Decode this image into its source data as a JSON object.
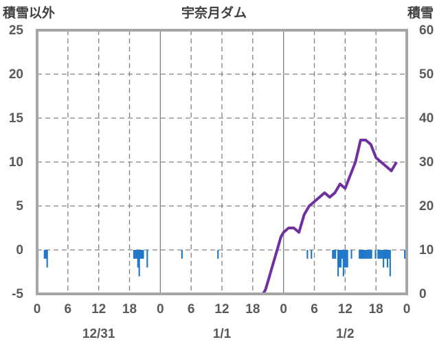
{
  "chart_data": {
    "type": "bar+line",
    "title": "宇奈月ダム",
    "left_axis_title": "積雪以外",
    "right_axis_title": "積雪",
    "left_ylim": [
      -5,
      25
    ],
    "right_ylim": [
      0,
      60
    ],
    "left_ticks": [
      "25",
      "20",
      "15",
      "10",
      "5",
      "0",
      "-5"
    ],
    "right_ticks": [
      "60",
      "50",
      "40",
      "30",
      "20",
      "10",
      "0"
    ],
    "x_tick_labels": [
      "0",
      "6",
      "12",
      "18",
      "0",
      "6",
      "12",
      "18",
      "0",
      "6",
      "12",
      "18",
      "0"
    ],
    "date_labels": [
      "12/31",
      "1/1",
      "1/2"
    ],
    "grid": true,
    "bar_color": "#1f77c8",
    "line_color": "#7030a0",
    "series": [
      {
        "axis": "left",
        "kind": "bar",
        "values": [
          -2,
          0,
          0,
          0,
          0,
          -1,
          -1,
          -2,
          0,
          0,
          0,
          0,
          0,
          0,
          0,
          0,
          0,
          0,
          0,
          0,
          0,
          0,
          0,
          0,
          0,
          0,
          0,
          0,
          0,
          0,
          0,
          0,
          0,
          0,
          0,
          0,
          0,
          0,
          0,
          0,
          0,
          0,
          0,
          0,
          0,
          0,
          0,
          0,
          0,
          0,
          0,
          0,
          0,
          0,
          0,
          0,
          0,
          0,
          0,
          0,
          0,
          0,
          0,
          0,
          0,
          0,
          0,
          0,
          0,
          0,
          0,
          0,
          -1,
          -1,
          -1,
          -2,
          -3,
          -1,
          -1,
          -1,
          0,
          0,
          -2,
          0,
          0,
          0,
          0,
          0,
          0,
          0,
          0,
          0,
          0,
          0,
          0,
          0,
          0,
          0,
          0,
          0,
          0,
          0,
          0,
          0,
          0,
          0,
          0,
          0,
          -1,
          0,
          0,
          0,
          0,
          0,
          0,
          0,
          0,
          0,
          0,
          0,
          0,
          0,
          0,
          0,
          0,
          0,
          0,
          0,
          0,
          0,
          0,
          0,
          0,
          0,
          0,
          -1,
          0,
          0,
          0,
          0,
          0,
          0,
          0,
          0,
          0,
          0,
          0,
          0,
          0,
          0,
          0,
          0,
          0,
          0,
          0,
          0,
          0,
          0,
          0,
          0,
          0,
          0,
          0,
          0,
          0,
          0,
          0,
          0,
          0,
          0,
          0,
          0,
          0,
          0,
          0,
          0,
          0,
          0,
          0,
          0,
          0,
          0,
          0,
          0,
          0,
          0,
          0,
          0,
          0,
          0,
          0,
          0,
          0,
          0,
          0,
          0,
          0,
          0,
          0,
          0,
          0,
          0,
          -1,
          0,
          0,
          -1,
          0,
          0,
          0,
          0,
          0,
          0,
          0,
          0,
          0,
          0,
          0,
          0,
          0,
          0,
          0,
          -1,
          -1,
          -1,
          0,
          -3,
          -2,
          -2,
          -1,
          -3,
          -2,
          -2,
          -2,
          0,
          0,
          -1,
          0,
          0,
          0,
          0,
          0,
          -1,
          -1,
          -1,
          -1,
          -1,
          -1,
          -1,
          -1,
          -1,
          -1,
          0,
          0,
          -1,
          0,
          -1,
          -1,
          -1,
          -1,
          -2,
          -1,
          -1,
          -2,
          -1,
          -3,
          0,
          0,
          0,
          0,
          0,
          0,
          0,
          0,
          0,
          0,
          -1,
          0
        ]
      },
      {
        "axis": "right",
        "kind": "line",
        "points": [
          [
            0,
            0
          ],
          [
            44,
            0
          ],
          [
            44.5,
            1
          ],
          [
            45,
            3
          ],
          [
            45.5,
            5
          ],
          [
            46,
            7
          ],
          [
            46.5,
            9
          ],
          [
            47,
            11
          ],
          [
            47.5,
            13
          ],
          [
            48,
            14
          ],
          [
            49,
            15
          ],
          [
            50,
            15
          ],
          [
            51,
            14
          ],
          [
            52,
            18
          ],
          [
            53,
            20
          ],
          [
            54,
            21
          ],
          [
            55,
            22
          ],
          [
            56,
            23
          ],
          [
            57,
            22
          ],
          [
            58,
            23
          ],
          [
            59,
            25
          ],
          [
            60,
            24
          ],
          [
            61,
            27
          ],
          [
            62,
            30
          ],
          [
            63,
            35
          ],
          [
            64,
            35
          ],
          [
            65,
            34
          ],
          [
            66,
            31
          ],
          [
            67,
            30
          ],
          [
            68,
            29
          ],
          [
            69,
            28
          ],
          [
            70,
            30
          ]
        ]
      }
    ]
  }
}
